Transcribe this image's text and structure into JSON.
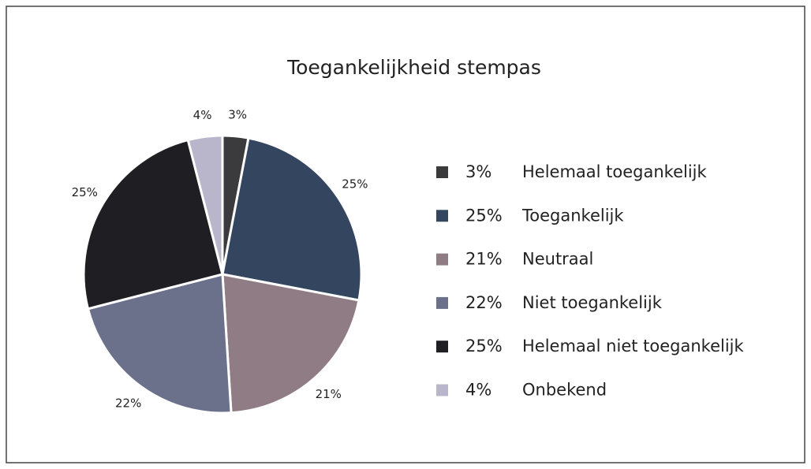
{
  "chart_data": {
    "type": "pie",
    "title": "Toegankelijkheid stempas",
    "categories": [
      "Helemaal toegankelijk",
      "Toegankelijk",
      "Neutraal",
      "Niet toegankelijk",
      "Helemaal niet toegankelijk",
      "Onbekend"
    ],
    "values": [
      3,
      25,
      21,
      22,
      25,
      4
    ],
    "value_labels": [
      "3%",
      "25%",
      "21%",
      "22%",
      "25%",
      "4%"
    ],
    "colors": [
      "#3b3b3d",
      "#34465f",
      "#8f7c84",
      "#6b708b",
      "#1f1f23",
      "#b9b5ca"
    ],
    "legend": "right"
  }
}
